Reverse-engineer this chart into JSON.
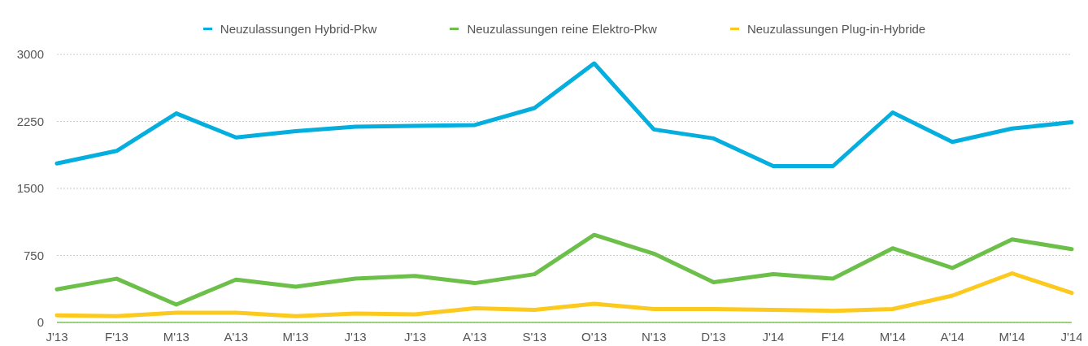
{
  "chart_data": {
    "type": "line",
    "categories": [
      "J'13",
      "F'13",
      "M'13",
      "A'13",
      "M'13",
      "J'13",
      "J'13",
      "A'13",
      "S'13",
      "O'13",
      "N'13",
      "D'13",
      "J'14",
      "F'14",
      "M'14",
      "A'14",
      "M'14",
      "J'14"
    ],
    "series": [
      {
        "name": "Neuzulassungen Hybrid-Pkw",
        "color": "#04aede",
        "values": [
          1780,
          1920,
          2340,
          2070,
          2140,
          2190,
          2200,
          2210,
          2400,
          2900,
          2160,
          2060,
          1750,
          1750,
          2350,
          2020,
          2170,
          2240
        ]
      },
      {
        "name": "Neuzulassungen reine Elektro-Pkw",
        "color": "#6cc04a",
        "values": [
          370,
          490,
          200,
          480,
          400,
          490,
          520,
          440,
          540,
          980,
          770,
          450,
          540,
          490,
          830,
          610,
          930,
          820
        ]
      },
      {
        "name": "Neuzulassungen Plug-in-Hybride",
        "color": "#fcc91e",
        "values": [
          80,
          70,
          110,
          110,
          70,
          100,
          90,
          160,
          140,
          210,
          150,
          150,
          140,
          130,
          150,
          300,
          550,
          330
        ]
      }
    ],
    "ylim": [
      0,
      3000
    ],
    "yticks": [
      0,
      750,
      1500,
      2250,
      3000
    ],
    "grid": "y",
    "legend": "top",
    "marker": "none",
    "line_style": "solid"
  }
}
